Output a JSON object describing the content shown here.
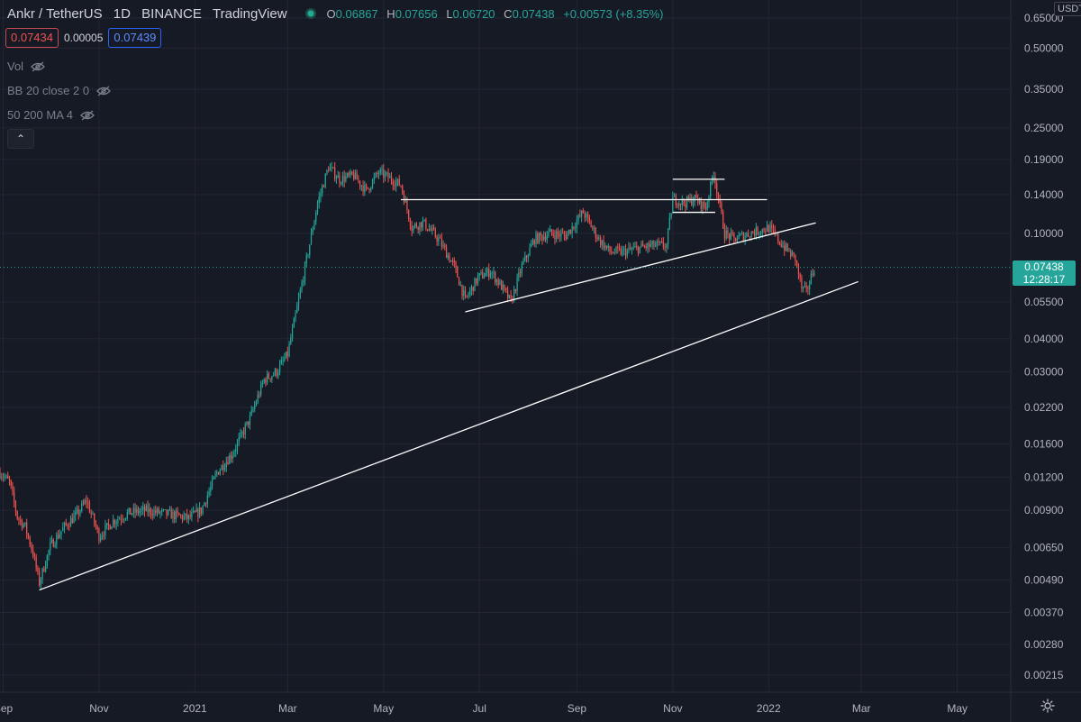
{
  "header": {
    "symbol": "Ankr / TetherUS",
    "interval": "1D",
    "exchange": "BINANCE",
    "source": "TradingView",
    "open_label": "O",
    "open": "0.06867",
    "high_label": "H",
    "high": "0.07656",
    "low_label": "L",
    "low": "0.06720",
    "close_label": "C",
    "close": "0.07438",
    "change": "+0.00573 (+8.35%)"
  },
  "trade": {
    "sell": "0.07434",
    "spread": "0.00005",
    "buy": "0.07439"
  },
  "indicators": [
    {
      "label": "Vol"
    },
    {
      "label": "BB 20 close 2 0"
    },
    {
      "label": "50 200 MA 4"
    }
  ],
  "collapse_symbol": "⌃",
  "price_axis": {
    "unit": "USDT",
    "current_price": "0.07438",
    "countdown": "12:28:17"
  },
  "colors": {
    "background": "#161a25",
    "grid": "#232632",
    "up": "#26a69a",
    "down": "#ef5350",
    "line": "#ffffff"
  },
  "chart_data": {
    "type": "candlestick",
    "scale": "log",
    "ylim": [
      0.00185,
      0.76
    ],
    "x_range": [
      "2020-08-30",
      "2022-06-04"
    ],
    "y_ticks": [
      "0.65000",
      "0.50000",
      "0.35000",
      "0.25000",
      "0.19000",
      "0.14000",
      "0.10000",
      "0.05500",
      "0.04000",
      "0.03000",
      "0.02200",
      "0.01600",
      "0.01200",
      "0.00900",
      "0.00650",
      "0.00490",
      "0.00370",
      "0.00280",
      "0.00215"
    ],
    "x_ticks": [
      {
        "date": "2020-09-01",
        "label": "Sep"
      },
      {
        "date": "2020-11-01",
        "label": "Nov"
      },
      {
        "date": "2021-01-01",
        "label": "2021"
      },
      {
        "date": "2021-03-01",
        "label": "Mar"
      },
      {
        "date": "2021-05-01",
        "label": "May"
      },
      {
        "date": "2021-07-01",
        "label": "Jul"
      },
      {
        "date": "2021-09-01",
        "label": "Sep"
      },
      {
        "date": "2021-11-01",
        "label": "Nov"
      },
      {
        "date": "2022-01-01",
        "label": "2022"
      },
      {
        "date": "2022-03-01",
        "label": "Mar"
      },
      {
        "date": "2022-05-01",
        "label": "May"
      }
    ],
    "price_path": [
      [
        "2020-08-30",
        0.0125
      ],
      [
        "2020-09-05",
        0.0115
      ],
      [
        "2020-09-10",
        0.0085
      ],
      [
        "2020-09-15",
        0.0078
      ],
      [
        "2020-09-20",
        0.0062
      ],
      [
        "2020-09-24",
        0.0048
      ],
      [
        "2020-10-01",
        0.0066
      ],
      [
        "2020-10-10",
        0.0078
      ],
      [
        "2020-10-18",
        0.0087
      ],
      [
        "2020-10-24",
        0.0098
      ],
      [
        "2020-11-01",
        0.0072
      ],
      [
        "2020-11-10",
        0.0082
      ],
      [
        "2020-11-20",
        0.0088
      ],
      [
        "2020-12-01",
        0.009
      ],
      [
        "2020-12-10",
        0.0088
      ],
      [
        "2020-12-20",
        0.0086
      ],
      [
        "2020-12-28",
        0.0084
      ],
      [
        "2021-01-05",
        0.009
      ],
      [
        "2021-01-15",
        0.0125
      ],
      [
        "2021-01-25",
        0.0148
      ],
      [
        "2021-02-05",
        0.02
      ],
      [
        "2021-02-14",
        0.028
      ],
      [
        "2021-02-22",
        0.03
      ],
      [
        "2021-03-01",
        0.035
      ],
      [
        "2021-03-08",
        0.056
      ],
      [
        "2021-03-14",
        0.085
      ],
      [
        "2021-03-20",
        0.13
      ],
      [
        "2021-03-27",
        0.178
      ],
      [
        "2021-04-03",
        0.16
      ],
      [
        "2021-04-12",
        0.165
      ],
      [
        "2021-04-20",
        0.145
      ],
      [
        "2021-04-28",
        0.17
      ],
      [
        "2021-05-06",
        0.16
      ],
      [
        "2021-05-12",
        0.152
      ],
      [
        "2021-05-19",
        0.105
      ],
      [
        "2021-05-26",
        0.11
      ],
      [
        "2021-06-05",
        0.095
      ],
      [
        "2021-06-15",
        0.075
      ],
      [
        "2021-06-22",
        0.056
      ],
      [
        "2021-06-30",
        0.068
      ],
      [
        "2021-07-08",
        0.072
      ],
      [
        "2021-07-15",
        0.063
      ],
      [
        "2021-07-21",
        0.055
      ],
      [
        "2021-07-28",
        0.075
      ],
      [
        "2021-08-05",
        0.095
      ],
      [
        "2021-08-15",
        0.1
      ],
      [
        "2021-08-25",
        0.098
      ],
      [
        "2021-09-05",
        0.12
      ],
      [
        "2021-09-15",
        0.095
      ],
      [
        "2021-09-22",
        0.085
      ],
      [
        "2021-10-01",
        0.085
      ],
      [
        "2021-10-10",
        0.088
      ],
      [
        "2021-10-20",
        0.09
      ],
      [
        "2021-10-28",
        0.09
      ],
      [
        "2021-11-01",
        0.135
      ],
      [
        "2021-11-08",
        0.13
      ],
      [
        "2021-11-15",
        0.135
      ],
      [
        "2021-11-22",
        0.125
      ],
      [
        "2021-11-27",
        0.17
      ],
      [
        "2021-12-04",
        0.1
      ],
      [
        "2021-12-10",
        0.095
      ],
      [
        "2021-12-20",
        0.1
      ],
      [
        "2022-01-01",
        0.105
      ],
      [
        "2022-01-10",
        0.09
      ],
      [
        "2022-01-18",
        0.08
      ],
      [
        "2022-01-22",
        0.062
      ],
      [
        "2022-01-25",
        0.06
      ],
      [
        "2022-01-30",
        0.0744
      ]
    ],
    "trendlines": [
      {
        "from": [
          "2020-09-24",
          0.0045
        ],
        "to": [
          "2022-02-27",
          0.0657
        ]
      },
      {
        "from": [
          "2021-06-22",
          0.0505
        ],
        "to": [
          "2022-01-31",
          0.1095
        ]
      },
      {
        "from": [
          "2021-05-12",
          0.134
        ],
        "to": [
          "2021-12-31",
          0.134
        ]
      },
      {
        "from": [
          "2021-11-01",
          0.16
        ],
        "to": [
          "2021-12-04",
          0.16
        ]
      },
      {
        "from": [
          "2021-11-01",
          0.12
        ],
        "to": [
          "2021-11-28",
          0.12
        ]
      }
    ],
    "current_price": 0.07438
  }
}
